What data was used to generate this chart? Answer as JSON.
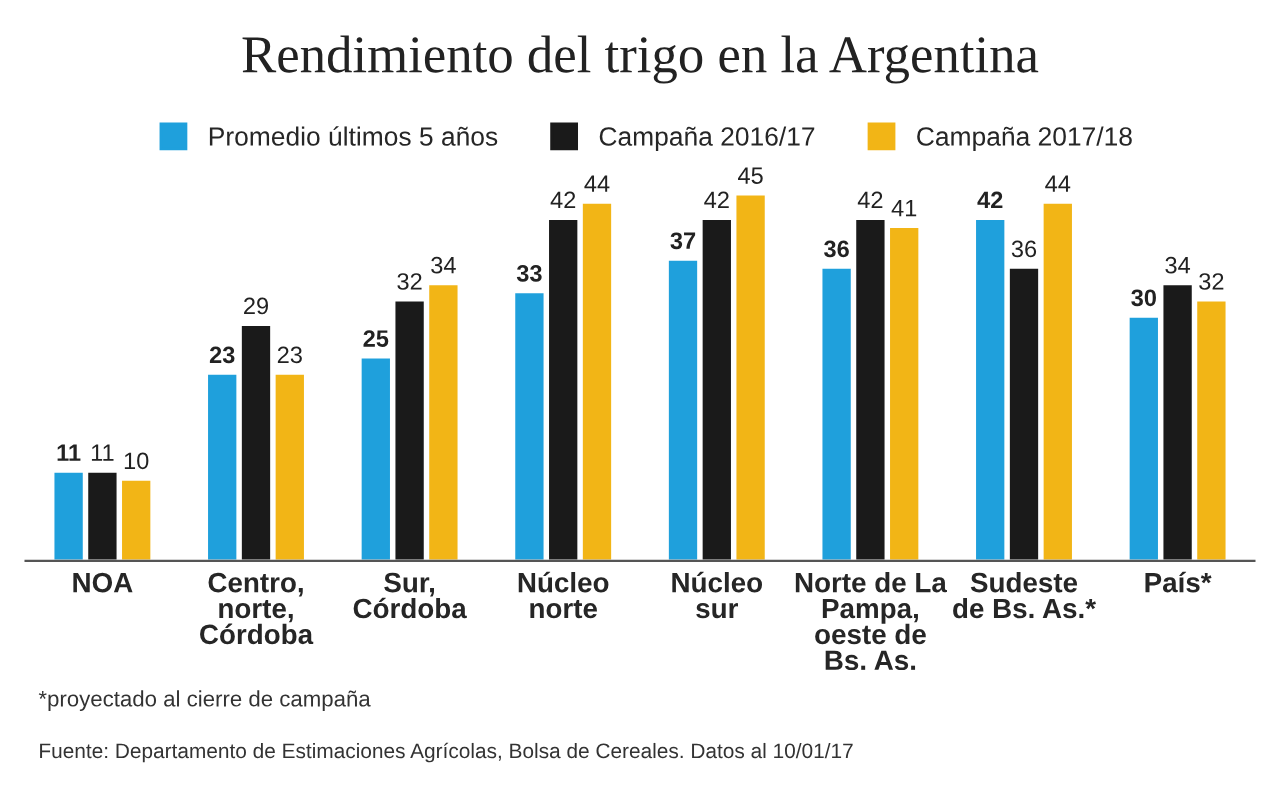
{
  "chart_data": {
    "type": "bar",
    "title": "Rendimiento del trigo en la Argentina",
    "categories": [
      "NOA",
      "Centro,\nnorte,\nCórdoba",
      "Sur,\nCórdoba",
      "Núcleo\nnorte",
      "Núcleo\nsur",
      "Norte de La\nPampa,\noeste de\nBs. As.",
      "Sudeste\nde Bs. As.*",
      "País*"
    ],
    "series": [
      {
        "name": "Promedio últimos 5 años",
        "color": "#1fa0dc",
        "values": [
          11,
          23,
          25,
          33,
          37,
          36,
          42,
          30
        ]
      },
      {
        "name": "Campaña 2016/17",
        "color": "#1a1a1a",
        "values": [
          11,
          29,
          32,
          42,
          42,
          42,
          36,
          34
        ]
      },
      {
        "name": "Campaña 2017/18",
        "color": "#f2b516",
        "values": [
          10,
          23,
          34,
          44,
          45,
          41,
          44,
          32
        ]
      }
    ],
    "data_labels": true,
    "legend": "top",
    "grid": false,
    "tick_labels": "x",
    "annotations": [
      "*proyectado al cierre de campaña",
      "Fuente: Departamento de Estimaciones Agrícolas, Bolsa de Cereales. Datos al 10/01/17"
    ]
  }
}
